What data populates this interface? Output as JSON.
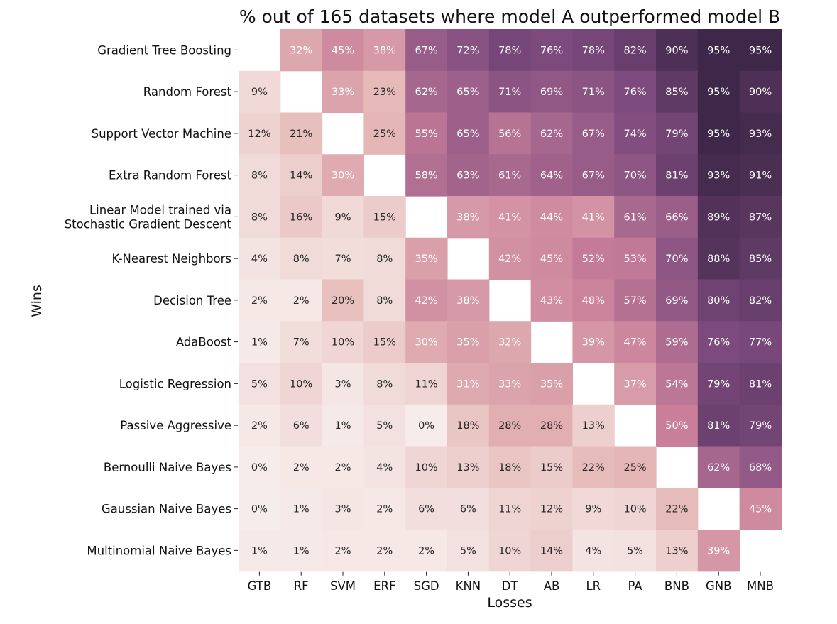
{
  "chart_data": {
    "type": "heatmap",
    "title": "% out of 165 datasets where model A outperformed model B",
    "xlabel": "Losses",
    "ylabel": "Wins",
    "row_labels": [
      "Gradient Tree Boosting",
      "Random Forest",
      "Support Vector Machine",
      "Extra Random Forest",
      "Linear Model trained via\nStochastic Gradient Descent",
      "K-Nearest Neighbors",
      "Decision Tree",
      "AdaBoost",
      "Logistic Regression",
      "Passive Aggressive",
      "Bernoulli Naive Bayes",
      "Gaussian Naive Bayes",
      "Multinomial Naive Bayes"
    ],
    "col_labels": [
      "GTB",
      "RF",
      "SVM",
      "ERF",
      "SGD",
      "KNN",
      "DT",
      "AB",
      "LR",
      "PA",
      "BNB",
      "GNB",
      "MNB"
    ],
    "values": [
      [
        null,
        32,
        45,
        38,
        67,
        72,
        78,
        76,
        78,
        82,
        90,
        95,
        95
      ],
      [
        9,
        null,
        33,
        23,
        62,
        65,
        71,
        69,
        71,
        76,
        85,
        95,
        90
      ],
      [
        12,
        21,
        null,
        25,
        55,
        65,
        56,
        62,
        67,
        74,
        79,
        95,
        93
      ],
      [
        8,
        14,
        30,
        null,
        58,
        63,
        61,
        64,
        67,
        70,
        81,
        93,
        91
      ],
      [
        8,
        16,
        9,
        15,
        null,
        38,
        41,
        44,
        41,
        61,
        66,
        89,
        87
      ],
      [
        4,
        8,
        7,
        8,
        35,
        null,
        42,
        45,
        52,
        53,
        70,
        88,
        85
      ],
      [
        2,
        2,
        20,
        8,
        42,
        38,
        null,
        43,
        48,
        57,
        69,
        80,
        82
      ],
      [
        1,
        7,
        10,
        15,
        30,
        35,
        32,
        null,
        39,
        47,
        59,
        76,
        77
      ],
      [
        5,
        10,
        3,
        8,
        11,
        31,
        33,
        35,
        null,
        37,
        54,
        79,
        81
      ],
      [
        2,
        6,
        1,
        5,
        0,
        18,
        28,
        28,
        13,
        null,
        50,
        81,
        79
      ],
      [
        0,
        2,
        2,
        4,
        10,
        13,
        18,
        15,
        22,
        25,
        null,
        62,
        68
      ],
      [
        0,
        1,
        3,
        2,
        6,
        6,
        11,
        12,
        9,
        10,
        22,
        null,
        45
      ],
      [
        1,
        1,
        2,
        2,
        2,
        5,
        10,
        14,
        4,
        5,
        13,
        39,
        null
      ]
    ],
    "value_suffix": "%",
    "color_scale": {
      "low": "#f6ece9",
      "mid_low": "#e4b6b5",
      "mid": "#c97f9a",
      "mid_high": "#7f4c7f",
      "high": "#2e1e3b"
    },
    "text_color_dark": "#262626",
    "text_color_light": "#ffffff",
    "grid": false
  }
}
